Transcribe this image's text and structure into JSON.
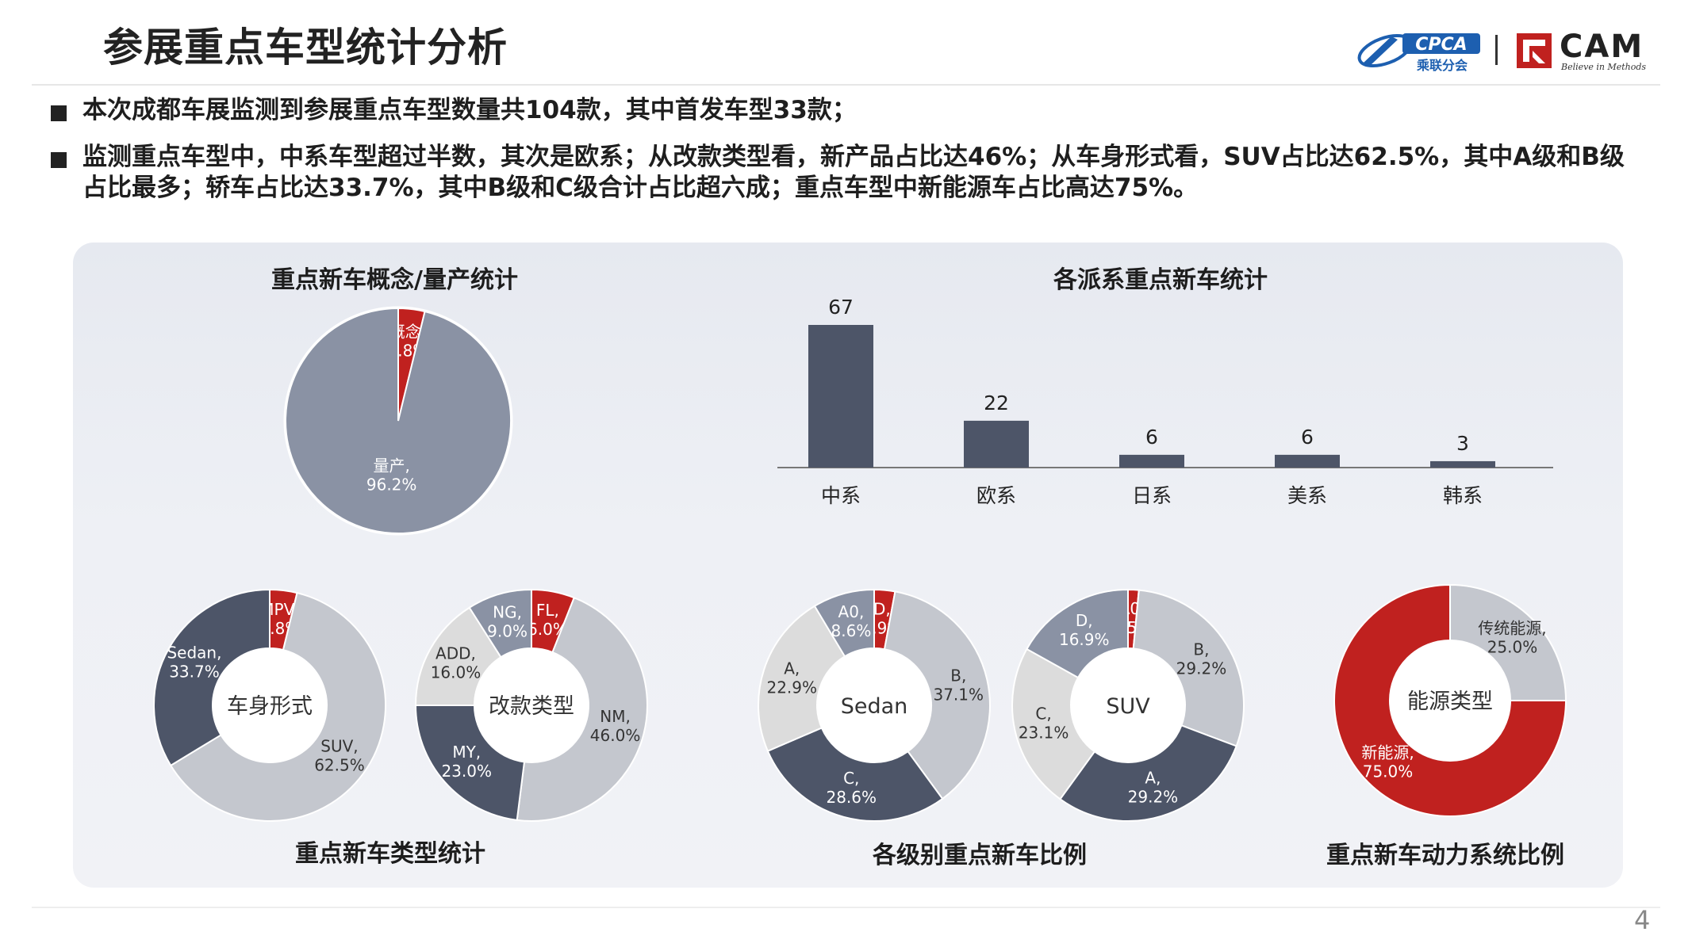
{
  "title": "参展重点车型统计分析",
  "logos": {
    "cpca_name": "CPCA",
    "cpca_sub": "乘联分会",
    "cam_name": "CAM",
    "cam_tagline": "Believe in Methods"
  },
  "bullets": [
    "本次成都车展监测到参展重点车型数量共104款，其中首发车型33款；",
    "监测重点车型中，中系车型超过半数，其次是欧系；从改款类型看，新产品占比达46%；从车身形式看，SUV占比达62.5%，其中A级和B级占比最多；轿车占比达33.7%，其中B级和C级合计占比超六成；重点车型中新能源车占比高达75%。"
  ],
  "chart_titles": {
    "concept": "重点新车概念/量产统计",
    "factions": "各派系重点新车统计",
    "types": "重点新车类型统计",
    "levels": "各级别重点新车比例",
    "power": "重点新车动力系统比例"
  },
  "colors": {
    "dark": "#4d5568",
    "mid": "#8a92a4",
    "light": "#c4c7ce",
    "pale": "#dcdcdc",
    "red": "#c0211f",
    "bar": "#4d5568"
  },
  "page_number": "4",
  "chart_data": [
    {
      "id": "concept",
      "type": "pie",
      "title": "重点新车概念/量产统计",
      "slices": [
        {
          "label": "概念",
          "value": 3.8,
          "color": "#c0211f"
        },
        {
          "label": "量产",
          "value": 96.2,
          "color": "#8a92a4"
        }
      ]
    },
    {
      "id": "factions",
      "type": "bar",
      "title": "各派系重点新车统计",
      "categories": [
        "中系",
        "欧系",
        "日系",
        "美系",
        "韩系"
      ],
      "values": [
        67,
        22,
        6,
        6,
        3
      ],
      "ylim": [
        0,
        70
      ]
    },
    {
      "id": "body",
      "type": "pie",
      "center_label": "车身形式",
      "slices": [
        {
          "label": "MPV",
          "value": 3.8,
          "color": "#c0211f"
        },
        {
          "label": "SUV",
          "value": 62.5,
          "color": "#c4c7ce"
        },
        {
          "label": "Sedan",
          "value": 33.7,
          "color": "#4d5568"
        }
      ]
    },
    {
      "id": "modification",
      "type": "pie",
      "center_label": "改款类型",
      "slices": [
        {
          "label": "FL",
          "value": 6.0,
          "color": "#c0211f"
        },
        {
          "label": "NM",
          "value": 46.0,
          "color": "#c4c7ce"
        },
        {
          "label": "MY",
          "value": 23.0,
          "color": "#4d5568"
        },
        {
          "label": "ADD",
          "value": 16.0,
          "color": "#dcdcdc"
        },
        {
          "label": "NG",
          "value": 9.0,
          "color": "#8a92a4"
        }
      ]
    },
    {
      "id": "sedan",
      "type": "pie",
      "center_label": "Sedan",
      "slices": [
        {
          "label": "D",
          "value": 2.9,
          "color": "#c0211f"
        },
        {
          "label": "B",
          "value": 37.1,
          "color": "#c4c7ce"
        },
        {
          "label": "C",
          "value": 28.6,
          "color": "#4d5568"
        },
        {
          "label": "A",
          "value": 22.9,
          "color": "#dcdcdc"
        },
        {
          "label": "A0",
          "value": 8.6,
          "color": "#8a92a4"
        }
      ]
    },
    {
      "id": "suv",
      "type": "pie",
      "center_label": "SUV",
      "slices": [
        {
          "label": "A0",
          "value": 1.5,
          "color": "#c0211f"
        },
        {
          "label": "B",
          "value": 29.2,
          "color": "#c4c7ce"
        },
        {
          "label": "A",
          "value": 29.2,
          "color": "#4d5568"
        },
        {
          "label": "C",
          "value": 23.1,
          "color": "#dcdcdc"
        },
        {
          "label": "D",
          "value": 16.9,
          "color": "#8a92a4"
        }
      ]
    },
    {
      "id": "power",
      "type": "pie",
      "center_label": "能源类型",
      "slices": [
        {
          "label": "传统能源",
          "value": 25.0,
          "color": "#c4c7ce"
        },
        {
          "label": "新能源",
          "value": 75.0,
          "color": "#c0211f"
        }
      ]
    }
  ]
}
